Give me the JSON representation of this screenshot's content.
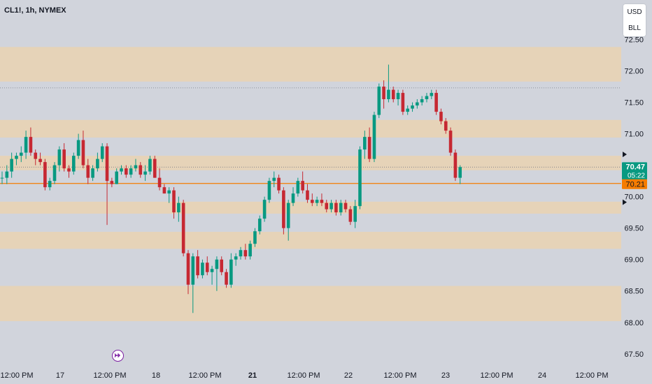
{
  "header": {
    "symbol": "CL1!, 1h, NYMEX"
  },
  "currency_toggle": {
    "currency": "USD",
    "unit": "BLL"
  },
  "price_labels": {
    "last_price": "70.47",
    "countdown": "05:22",
    "alert_price": "70.21"
  },
  "colors": {
    "background": "#d1d4dc",
    "zone_fill": "#e6d3b8",
    "bull": "#089981",
    "bear": "#c62832",
    "last_price_bg": "#089981",
    "alert_line": "#f57c00",
    "event_icon": "#7b1fa2"
  },
  "icons": {
    "event": "event-arrow-icon",
    "marker": "triangle-right-icon"
  },
  "chart_data": {
    "type": "candlestick",
    "title": "CL1!, 1h, NYMEX",
    "y_ticks": [
      "72.50",
      "72.00",
      "71.50",
      "71.00",
      "70.50",
      "70.00",
      "69.50",
      "69.00",
      "68.50",
      "68.00",
      "67.50"
    ],
    "x_ticks": [
      {
        "label": "12:00 PM",
        "bold": false
      },
      {
        "label": "17",
        "bold": false
      },
      {
        "label": "12:00 PM",
        "bold": false
      },
      {
        "label": "18",
        "bold": false
      },
      {
        "label": "12:00 PM",
        "bold": false
      },
      {
        "label": "21",
        "bold": true
      },
      {
        "label": "12:00 PM",
        "bold": false
      },
      {
        "label": "22",
        "bold": false
      },
      {
        "label": "12:00 PM",
        "bold": false
      },
      {
        "label": "23",
        "bold": false
      },
      {
        "label": "12:00 PM",
        "bold": false
      },
      {
        "label": "24",
        "bold": false
      },
      {
        "label": "12:00 PM",
        "bold": false
      }
    ],
    "ylim": [
      67.42,
      72.75
    ],
    "grid": false,
    "zones": [
      [
        71.83,
        72.38
      ],
      [
        70.94,
        71.22
      ],
      [
        70.42,
        70.65
      ],
      [
        69.73,
        69.92
      ],
      [
        69.17,
        69.44
      ],
      [
        68.02,
        68.58
      ]
    ],
    "horizontal_lines": [
      {
        "value": 71.73,
        "style": "dotted"
      },
      {
        "value": 70.47,
        "style": "dotted"
      },
      {
        "value": 70.21,
        "style": "solid",
        "color": "#f57c00"
      }
    ],
    "candles": [
      [
        70.3,
        70.4,
        70.2,
        70.3
      ],
      [
        70.3,
        70.5,
        70.2,
        70.4
      ],
      [
        70.4,
        70.7,
        70.3,
        70.6
      ],
      [
        70.6,
        70.7,
        70.5,
        70.65
      ],
      [
        70.65,
        70.8,
        70.55,
        70.7
      ],
      [
        70.7,
        71.05,
        70.6,
        70.95
      ],
      [
        70.95,
        71.1,
        70.65,
        70.7
      ],
      [
        70.7,
        70.75,
        70.5,
        70.6
      ],
      [
        70.6,
        70.7,
        70.5,
        70.55
      ],
      [
        70.55,
        70.6,
        70.1,
        70.15
      ],
      [
        70.15,
        70.3,
        70.1,
        70.25
      ],
      [
        70.25,
        70.55,
        70.2,
        70.5
      ],
      [
        70.5,
        70.8,
        70.4,
        70.75
      ],
      [
        70.75,
        70.85,
        70.4,
        70.45
      ],
      [
        70.45,
        70.5,
        70.3,
        70.4
      ],
      [
        70.4,
        70.7,
        70.35,
        70.65
      ],
      [
        70.65,
        71.0,
        70.6,
        70.9
      ],
      [
        70.9,
        71.05,
        70.45,
        70.5
      ],
      [
        70.5,
        70.6,
        70.2,
        70.3
      ],
      [
        70.3,
        70.5,
        70.25,
        70.45
      ],
      [
        70.45,
        70.7,
        70.4,
        70.6
      ],
      [
        70.6,
        70.85,
        70.55,
        70.8
      ],
      [
        70.8,
        70.85,
        69.55,
        70.25
      ],
      [
        70.25,
        70.3,
        70.15,
        70.2
      ],
      [
        70.2,
        70.45,
        70.2,
        70.4
      ],
      [
        70.4,
        70.5,
        70.35,
        70.45
      ],
      [
        70.45,
        70.5,
        70.3,
        70.35
      ],
      [
        70.35,
        70.5,
        70.3,
        70.45
      ],
      [
        70.45,
        70.6,
        70.4,
        70.5
      ],
      [
        70.5,
        70.55,
        70.3,
        70.35
      ],
      [
        70.35,
        70.5,
        70.25,
        70.4
      ],
      [
        70.4,
        70.65,
        70.35,
        70.6
      ],
      [
        70.6,
        70.65,
        70.3,
        70.3
      ],
      [
        70.3,
        70.45,
        70.1,
        70.15
      ],
      [
        70.15,
        70.2,
        70.05,
        70.05
      ],
      [
        70.05,
        70.15,
        69.9,
        70.1
      ],
      [
        70.1,
        70.15,
        69.65,
        69.75
      ],
      [
        69.75,
        70.0,
        69.6,
        69.9
      ],
      [
        69.9,
        69.95,
        69.05,
        69.1
      ],
      [
        69.1,
        69.15,
        68.45,
        68.6
      ],
      [
        68.6,
        69.1,
        68.15,
        69.05
      ],
      [
        69.05,
        69.15,
        68.7,
        68.75
      ],
      [
        68.75,
        69.0,
        68.7,
        68.95
      ],
      [
        68.95,
        69.05,
        68.75,
        68.8
      ],
      [
        68.8,
        68.9,
        68.6,
        68.85
      ],
      [
        68.85,
        69.05,
        68.5,
        69.0
      ],
      [
        69.0,
        69.05,
        68.75,
        68.8
      ],
      [
        68.8,
        68.85,
        68.55,
        68.6
      ],
      [
        68.6,
        69.1,
        68.55,
        69.0
      ],
      [
        69.0,
        69.1,
        68.9,
        69.05
      ],
      [
        69.05,
        69.2,
        69.0,
        69.15
      ],
      [
        69.15,
        69.25,
        69.0,
        69.05
      ],
      [
        69.05,
        69.3,
        69.0,
        69.25
      ],
      [
        69.25,
        69.5,
        69.2,
        69.45
      ],
      [
        69.45,
        69.7,
        69.4,
        69.65
      ],
      [
        69.65,
        70.0,
        69.6,
        69.95
      ],
      [
        69.95,
        70.3,
        69.9,
        70.25
      ],
      [
        70.25,
        70.4,
        70.15,
        70.3
      ],
      [
        70.3,
        70.35,
        70.05,
        70.1
      ],
      [
        70.1,
        70.15,
        69.4,
        69.5
      ],
      [
        69.5,
        69.95,
        69.3,
        69.9
      ],
      [
        69.9,
        70.15,
        69.85,
        70.05
      ],
      [
        70.05,
        70.3,
        70.0,
        70.25
      ],
      [
        70.25,
        70.4,
        70.05,
        70.1
      ],
      [
        70.1,
        70.2,
        69.9,
        69.95
      ],
      [
        69.95,
        70.05,
        69.85,
        69.9
      ],
      [
        69.9,
        70.0,
        69.85,
        69.95
      ],
      [
        69.95,
        70.05,
        69.85,
        69.9
      ],
      [
        69.9,
        69.95,
        69.75,
        69.8
      ],
      [
        69.8,
        69.95,
        69.75,
        69.9
      ],
      [
        69.9,
        69.95,
        69.7,
        69.75
      ],
      [
        69.75,
        69.95,
        69.7,
        69.9
      ],
      [
        69.9,
        69.95,
        69.75,
        69.8
      ],
      [
        69.8,
        69.85,
        69.55,
        69.6
      ],
      [
        69.6,
        69.95,
        69.5,
        69.85
      ],
      [
        69.85,
        70.8,
        69.8,
        70.75
      ],
      [
        70.75,
        71.05,
        70.6,
        70.95
      ],
      [
        70.95,
        71.1,
        70.55,
        70.6
      ],
      [
        70.6,
        71.35,
        70.55,
        71.3
      ],
      [
        71.3,
        71.8,
        71.25,
        71.75
      ],
      [
        71.75,
        71.85,
        71.4,
        71.55
      ],
      [
        71.55,
        72.1,
        71.5,
        71.7
      ],
      [
        71.7,
        71.75,
        71.5,
        71.55
      ],
      [
        71.55,
        71.7,
        71.45,
        71.65
      ],
      [
        71.65,
        71.7,
        71.3,
        71.35
      ],
      [
        71.35,
        71.45,
        71.3,
        71.4
      ],
      [
        71.4,
        71.5,
        71.35,
        71.45
      ],
      [
        71.45,
        71.55,
        71.4,
        71.5
      ],
      [
        71.5,
        71.6,
        71.45,
        71.55
      ],
      [
        71.55,
        71.65,
        71.5,
        71.6
      ],
      [
        71.6,
        71.7,
        71.55,
        71.65
      ],
      [
        71.65,
        71.7,
        71.3,
        71.35
      ],
      [
        71.35,
        71.4,
        71.15,
        71.2
      ],
      [
        71.2,
        71.25,
        71.0,
        71.05
      ],
      [
        71.05,
        71.1,
        70.65,
        70.7
      ],
      [
        70.7,
        70.75,
        70.25,
        70.3
      ],
      [
        70.3,
        70.5,
        70.2,
        70.47
      ]
    ]
  }
}
